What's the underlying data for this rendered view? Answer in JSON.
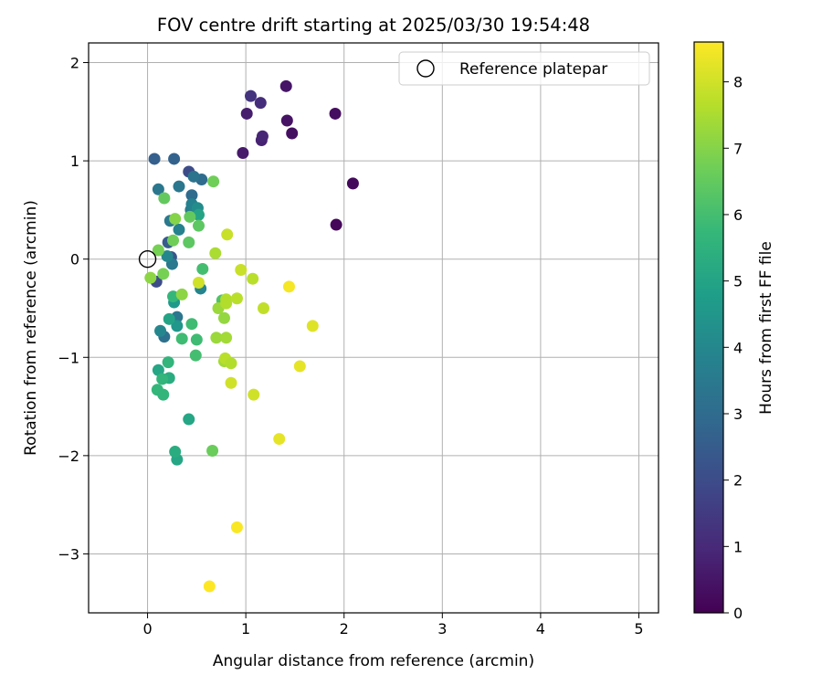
{
  "chart_data": {
    "type": "scatter",
    "title": "FOV centre drift starting at 2025/03/30 19:54:48",
    "xlabel": "Angular distance from reference (arcmin)",
    "ylabel": "Rotation from reference (arcmin)",
    "xlim": [
      -0.6,
      5.2
    ],
    "ylim": [
      -3.6,
      2.2
    ],
    "xticks": [
      0,
      1,
      2,
      3,
      4,
      5
    ],
    "yticks": [
      -3,
      -2,
      -1,
      0,
      1,
      2
    ],
    "grid": true,
    "legend": {
      "placement": "top-right",
      "entries": [
        "Reference platepar"
      ]
    },
    "reference_point": {
      "x": 0,
      "y": 0,
      "label": "Reference platepar"
    },
    "colorbar": {
      "label": "Hours from first FF file",
      "range": [
        0,
        8.6
      ],
      "ticks": [
        0,
        1,
        2,
        3,
        4,
        5,
        6,
        7,
        8
      ],
      "colormap": "viridis",
      "colors": [
        "#440154",
        "#482878",
        "#3e4989",
        "#31688e",
        "#26828e",
        "#1f9e89",
        "#35b779",
        "#6ece58",
        "#b5de2b",
        "#fde725"
      ]
    },
    "points": [
      {
        "x": 1.92,
        "y": 0.35,
        "h": 0.15
      },
      {
        "x": 2.09,
        "y": 0.77,
        "h": 0.2
      },
      {
        "x": 1.91,
        "y": 1.48,
        "h": 0.3
      },
      {
        "x": 1.47,
        "y": 1.28,
        "h": 0.35
      },
      {
        "x": 1.42,
        "y": 1.41,
        "h": 0.45
      },
      {
        "x": 1.41,
        "y": 1.76,
        "h": 0.5
      },
      {
        "x": 0.97,
        "y": 1.08,
        "h": 0.6
      },
      {
        "x": 1.01,
        "y": 1.48,
        "h": 0.7
      },
      {
        "x": 1.16,
        "y": 1.21,
        "h": 0.8
      },
      {
        "x": 1.17,
        "y": 1.25,
        "h": 0.9
      },
      {
        "x": 1.15,
        "y": 1.59,
        "h": 1.1
      },
      {
        "x": 1.05,
        "y": 1.66,
        "h": 1.3
      },
      {
        "x": 0.42,
        "y": 0.89,
        "h": 2.0
      },
      {
        "x": 0.09,
        "y": -0.23,
        "h": 2.0
      },
      {
        "x": 0.24,
        "y": 0.02,
        "h": 2.3
      },
      {
        "x": 0.21,
        "y": 0.17,
        "h": 2.5
      },
      {
        "x": 0.07,
        "y": 1.02,
        "h": 2.6
      },
      {
        "x": 0.27,
        "y": 1.02,
        "h": 2.7
      },
      {
        "x": 0.45,
        "y": 0.65,
        "h": 3.0
      },
      {
        "x": 0.55,
        "y": 0.81,
        "h": 3.0
      },
      {
        "x": 0.47,
        "y": 0.84,
        "h": 3.3
      },
      {
        "x": 0.32,
        "y": 0.74,
        "h": 3.4
      },
      {
        "x": 0.17,
        "y": -0.79,
        "h": 3.2
      },
      {
        "x": 0.3,
        "y": -0.59,
        "h": 3.4
      },
      {
        "x": 0.23,
        "y": 0.39,
        "h": 3.5
      },
      {
        "x": 0.44,
        "y": 0.5,
        "h": 3.6
      },
      {
        "x": 0.45,
        "y": 0.56,
        "h": 3.8
      },
      {
        "x": 0.32,
        "y": 0.3,
        "h": 3.8
      },
      {
        "x": 0.54,
        "y": -0.3,
        "h": 3.9
      },
      {
        "x": 0.11,
        "y": 0.71,
        "h": 3.4
      },
      {
        "x": 0.25,
        "y": -0.05,
        "h": 3.5
      },
      {
        "x": 0.13,
        "y": -0.73,
        "h": 4.0
      },
      {
        "x": 0.2,
        "y": 0.03,
        "h": 4.0
      },
      {
        "x": 0.51,
        "y": 0.52,
        "h": 4.2
      },
      {
        "x": 0.3,
        "y": -0.68,
        "h": 4.5
      },
      {
        "x": 0.27,
        "y": -0.44,
        "h": 4.6
      },
      {
        "x": 0.52,
        "y": 0.45,
        "h": 5.0
      },
      {
        "x": 0.22,
        "y": -0.61,
        "h": 5.0
      },
      {
        "x": 0.11,
        "y": -1.13,
        "h": 5.1
      },
      {
        "x": 0.42,
        "y": -1.63,
        "h": 5.1
      },
      {
        "x": 0.3,
        "y": -2.04,
        "h": 5.1
      },
      {
        "x": 0.28,
        "y": -1.96,
        "h": 5.3
      },
      {
        "x": 0.22,
        "y": -1.21,
        "h": 5.3
      },
      {
        "x": 0.15,
        "y": -1.22,
        "h": 5.6
      },
      {
        "x": 0.1,
        "y": -1.33,
        "h": 5.7
      },
      {
        "x": 0.16,
        "y": -1.38,
        "h": 5.6
      },
      {
        "x": 0.21,
        "y": -1.05,
        "h": 5.6
      },
      {
        "x": 0.26,
        "y": -0.38,
        "h": 5.7
      },
      {
        "x": 0.35,
        "y": -0.81,
        "h": 5.9
      },
      {
        "x": 0.45,
        "y": -0.66,
        "h": 5.9
      },
      {
        "x": 0.5,
        "y": -0.82,
        "h": 5.9
      },
      {
        "x": 0.49,
        "y": -0.98,
        "h": 6.0
      },
      {
        "x": 0.56,
        "y": -0.1,
        "h": 6.0
      },
      {
        "x": 0.76,
        "y": -0.42,
        "h": 6.2
      },
      {
        "x": 0.42,
        "y": 0.17,
        "h": 6.4
      },
      {
        "x": 0.52,
        "y": 0.34,
        "h": 6.4
      },
      {
        "x": 0.43,
        "y": 0.43,
        "h": 6.5
      },
      {
        "x": 0.17,
        "y": 0.62,
        "h": 6.5
      },
      {
        "x": 0.66,
        "y": -1.95,
        "h": 6.6
      },
      {
        "x": 0.67,
        "y": 0.79,
        "h": 6.7
      },
      {
        "x": 0.26,
        "y": 0.19,
        "h": 6.7
      },
      {
        "x": 0.11,
        "y": 0.09,
        "h": 6.8
      },
      {
        "x": 0.16,
        "y": -0.15,
        "h": 6.8
      },
      {
        "x": 0.28,
        "y": 0.41,
        "h": 7.0
      },
      {
        "x": 0.35,
        "y": -0.36,
        "h": 7.1
      },
      {
        "x": 0.03,
        "y": -0.19,
        "h": 7.1
      },
      {
        "x": 0.78,
        "y": -0.6,
        "h": 7.2
      },
      {
        "x": 0.7,
        "y": -0.8,
        "h": 7.3
      },
      {
        "x": 0.72,
        "y": -0.5,
        "h": 7.3
      },
      {
        "x": 0.78,
        "y": -1.04,
        "h": 7.4
      },
      {
        "x": 0.8,
        "y": -0.8,
        "h": 7.4
      },
      {
        "x": 0.69,
        "y": 0.06,
        "h": 7.5
      },
      {
        "x": 0.8,
        "y": -0.41,
        "h": 7.6
      },
      {
        "x": 0.8,
        "y": -0.45,
        "h": 7.6
      },
      {
        "x": 0.91,
        "y": -0.4,
        "h": 7.7
      },
      {
        "x": 0.79,
        "y": -1.01,
        "h": 7.7
      },
      {
        "x": 0.85,
        "y": -1.06,
        "h": 7.6
      },
      {
        "x": 1.07,
        "y": -0.2,
        "h": 7.7
      },
      {
        "x": 1.18,
        "y": -0.5,
        "h": 7.8
      },
      {
        "x": 0.95,
        "y": -0.11,
        "h": 7.9
      },
      {
        "x": 0.81,
        "y": 0.25,
        "h": 7.9
      },
      {
        "x": 0.52,
        "y": -0.24,
        "h": 8.0
      },
      {
        "x": 0.85,
        "y": -1.26,
        "h": 8.0
      },
      {
        "x": 1.08,
        "y": -1.38,
        "h": 8.0
      },
      {
        "x": 1.68,
        "y": -0.68,
        "h": 8.2
      },
      {
        "x": 1.55,
        "y": -1.09,
        "h": 8.3
      },
      {
        "x": 1.34,
        "y": -1.83,
        "h": 8.3
      },
      {
        "x": 1.44,
        "y": -0.28,
        "h": 8.5
      },
      {
        "x": 0.91,
        "y": -2.73,
        "h": 8.55
      },
      {
        "x": 0.63,
        "y": -3.33,
        "h": 8.6
      }
    ]
  }
}
